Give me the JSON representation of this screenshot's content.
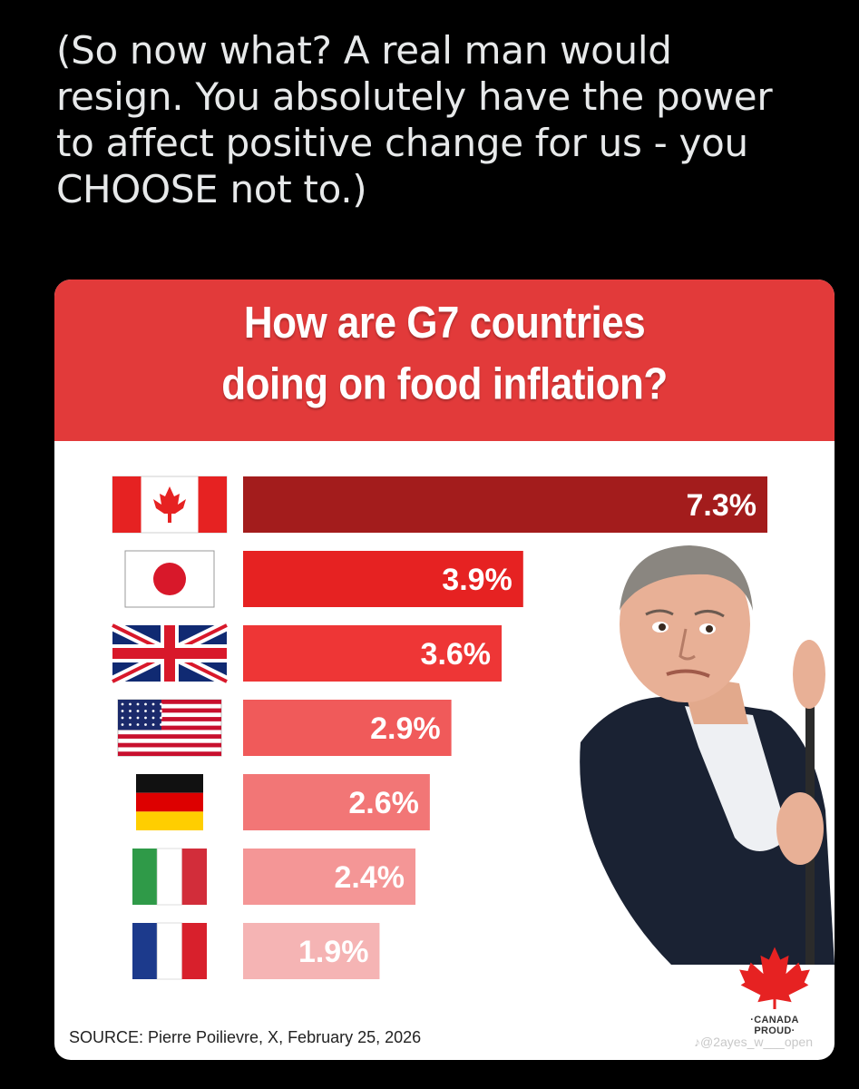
{
  "tweet": {
    "text": "(So now what? A real man would\nresign. You absolutely have the power\nto affect positive change for us - you\nCHOOSE not to.)"
  },
  "chart_data": {
    "type": "bar",
    "orientation": "horizontal",
    "title": "How are G7 countries\ndoing on food inflation?",
    "categories": [
      "Canada",
      "Japan",
      "United Kingdom",
      "United States",
      "Germany",
      "Italy",
      "France"
    ],
    "values": [
      7.3,
      3.9,
      3.6,
      2.9,
      2.6,
      2.4,
      1.9
    ],
    "labels": [
      "7.3%",
      "3.9%",
      "3.6%",
      "2.9%",
      "2.6%",
      "2.4%",
      "1.9%"
    ],
    "xlim": [
      0,
      7.3
    ],
    "bar_colors": [
      "#a31c1c",
      "#e62222",
      "#ee3636",
      "#f05a5a",
      "#f27676",
      "#f49696",
      "#f5b4b4"
    ],
    "category_icons": [
      "canada-flag-icon",
      "japan-flag-icon",
      "uk-flag-icon",
      "usa-flag-icon",
      "germany-flag-icon",
      "italy-flag-icon",
      "france-flag-icon"
    ],
    "grid": false,
    "legend": "none"
  },
  "source": "SOURCE: Pierre Poilievre, X, February 25, 2026",
  "brand": {
    "text": "·CANADA PROUD·",
    "icon": "maple-leaf-icon"
  },
  "watermark": "♪@2ayes_w___open",
  "colors": {
    "header_red": "#e23a3a",
    "background": "#000000",
    "card": "#ffffff"
  }
}
